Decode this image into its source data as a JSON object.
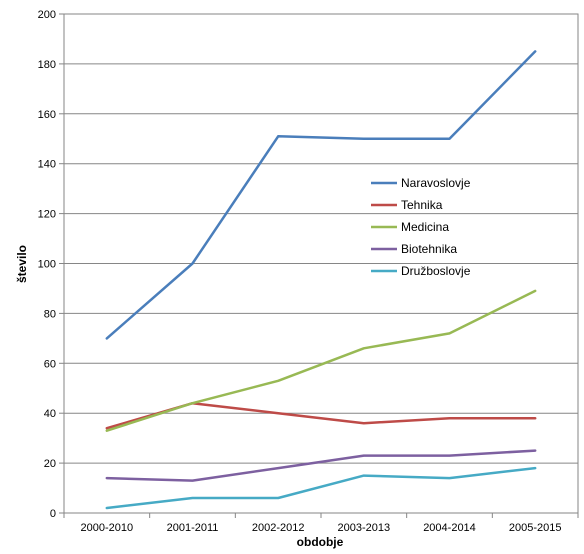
{
  "chart_data": {
    "type": "line",
    "title": "",
    "xlabel": "obdobje",
    "ylabel": "število",
    "ylim": [
      0,
      200
    ],
    "ytick_step": 20,
    "grid": "horizontal",
    "legend_position": "center-right",
    "categories": [
      "2000-2010",
      "2001-2011",
      "2002-2012",
      "2003-2013",
      "2004-2014",
      "2005-2015"
    ],
    "series": [
      {
        "name": "Naravoslovje",
        "color": "#4A7EBB",
        "values": [
          70,
          100,
          151,
          150,
          150,
          185
        ]
      },
      {
        "name": "Tehnika",
        "color": "#BE4B48",
        "values": [
          34,
          44,
          40,
          36,
          38,
          38
        ]
      },
      {
        "name": "Medicina",
        "color": "#98B954",
        "values": [
          33,
          44,
          53,
          66,
          72,
          89
        ]
      },
      {
        "name": "Biotehnika",
        "color": "#7D60A0",
        "values": [
          14,
          13,
          18,
          23,
          23,
          25
        ]
      },
      {
        "name": "Družboslovje",
        "color": "#46AAC5",
        "values": [
          2,
          6,
          6,
          15,
          14,
          18
        ]
      }
    ]
  }
}
